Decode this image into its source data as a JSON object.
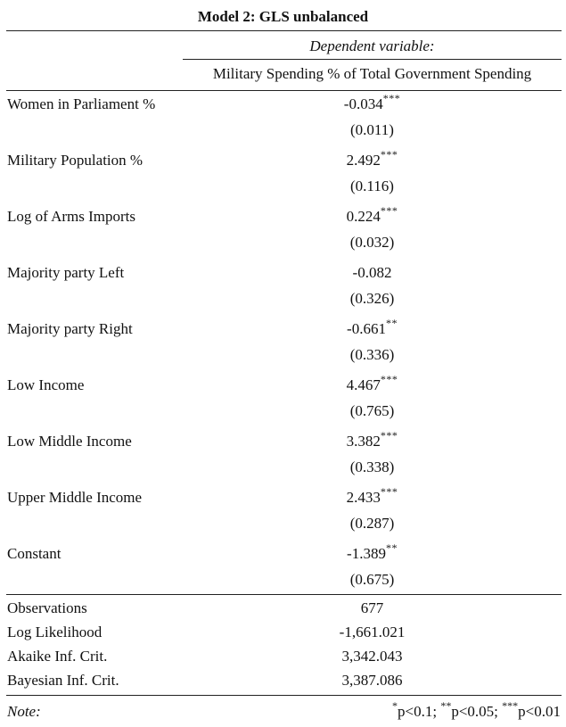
{
  "title": "Model 2: GLS unbalanced",
  "dependent_variable_label": "Dependent variable:",
  "dependent_variable": "Military Spending % of Total Government Spending",
  "coefficients": [
    {
      "label": "Women in Parliament %",
      "estimate": "-0.034",
      "stars": "***",
      "se": "(0.011)"
    },
    {
      "label": "Military Population %",
      "estimate": "2.492",
      "stars": "***",
      "se": "(0.116)"
    },
    {
      "label": "Log of Arms Imports",
      "estimate": "0.224",
      "stars": "***",
      "se": "(0.032)"
    },
    {
      "label": "Majority party Left",
      "estimate": "-0.082",
      "stars": "",
      "se": "(0.326)"
    },
    {
      "label": "Majority party Right",
      "estimate": "-0.661",
      "stars": "**",
      "se": "(0.336)"
    },
    {
      "label": "Low Income",
      "estimate": "4.467",
      "stars": "***",
      "se": "(0.765)"
    },
    {
      "label": "Low Middle Income",
      "estimate": "3.382",
      "stars": "***",
      "se": "(0.338)"
    },
    {
      "label": "Upper Middle Income",
      "estimate": "2.433",
      "stars": "***",
      "se": "(0.287)"
    },
    {
      "label": "Constant",
      "estimate": "-1.389",
      "stars": "**",
      "se": "(0.675)"
    }
  ],
  "stats": [
    {
      "label": "Observations",
      "value": "677"
    },
    {
      "label": "Log Likelihood",
      "value": "-1,661.021"
    },
    {
      "label": "Akaike Inf. Crit.",
      "value": "3,342.043"
    },
    {
      "label": "Bayesian Inf. Crit.",
      "value": "3,387.086"
    }
  ],
  "note": {
    "label": "Note:",
    "s1": "*",
    "t1": "p<0.1; ",
    "s2": "**",
    "t2": "p<0.05; ",
    "s3": "***",
    "t3": "p<0.01"
  }
}
